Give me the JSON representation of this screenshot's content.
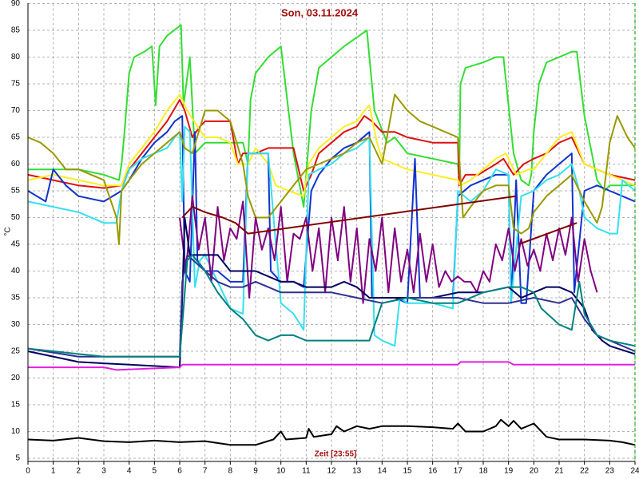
{
  "chart_data": {
    "type": "line",
    "title": "Son, 03.11.2024",
    "xlabel": "Zeit [23:55]",
    "ylabel": "°C",
    "xlim": [
      0,
      24
    ],
    "ylim": [
      5,
      90
    ],
    "xticks": [
      0,
      1,
      2,
      3,
      4,
      5,
      6,
      7,
      8,
      9,
      10,
      11,
      12,
      13,
      14,
      15,
      16,
      17,
      18,
      19,
      20,
      21,
      22,
      23,
      24
    ],
    "yticks": [
      5,
      10,
      15,
      20,
      25,
      30,
      35,
      40,
      45,
      50,
      55,
      60,
      65,
      70,
      75,
      80,
      85,
      90
    ],
    "grid": true,
    "series": [
      {
        "color": "#33dd33",
        "x": [
          0,
          1,
          2,
          3,
          3.6,
          3.7,
          3.8,
          4,
          4.2,
          4.6,
          4.9,
          5.05,
          5.2,
          5.5,
          6.05,
          6.15,
          6.4,
          6.6,
          7,
          8,
          8.5,
          8.7,
          8.8,
          9,
          9.5,
          10,
          10.5,
          10.9,
          11.2,
          11.5,
          12,
          12.5,
          13.1,
          13.4,
          13.7,
          14.2,
          14.5,
          15,
          16,
          17,
          17.05,
          17.1,
          17.3,
          18,
          18.5,
          18.8,
          19.2,
          19.5,
          19.8,
          19.9,
          20,
          20.2,
          20.5,
          21,
          21.5,
          21.7,
          22,
          22.5,
          22.8,
          23,
          24
        ],
        "values": [
          59,
          59,
          59,
          58,
          57,
          60,
          65,
          77,
          80,
          81,
          82,
          71,
          82,
          84,
          86,
          71,
          80,
          62,
          64,
          64,
          64,
          60,
          72,
          77,
          80,
          82,
          62,
          52,
          70,
          78,
          80,
          82,
          84,
          85,
          70,
          64,
          65,
          62,
          61,
          60,
          57,
          75,
          78,
          79,
          80,
          80,
          62,
          57,
          56,
          58,
          66,
          75,
          79,
          80,
          81,
          81,
          69,
          57,
          55,
          56,
          56
        ]
      },
      {
        "color": "#dd1111",
        "x": [
          0,
          1,
          2,
          3,
          3.7,
          4,
          4.5,
          5,
          5.5,
          6,
          6.2,
          6.5,
          6.8,
          7,
          8,
          8.3,
          8.5,
          9,
          9.5,
          10,
          10.5,
          10.9,
          11.2,
          11.5,
          12,
          12.5,
          13,
          13.3,
          13.6,
          14,
          14.5,
          15,
          16,
          17,
          17.05,
          17.3,
          17.8,
          18.5,
          18.8,
          19.2,
          19.6,
          20,
          20.5,
          21,
          21.5,
          21.7,
          22,
          22.5,
          23,
          24
        ],
        "values": [
          58,
          57,
          56,
          55.5,
          56,
          59,
          62,
          65,
          68,
          72,
          70,
          65,
          67,
          68,
          68,
          60,
          62,
          62,
          63,
          63,
          63,
          55,
          58,
          62,
          64,
          66,
          67,
          69,
          68,
          66,
          66,
          65,
          64,
          64,
          56,
          58,
          58,
          60,
          61,
          58,
          60,
          61,
          62,
          64,
          65,
          63,
          60,
          59,
          58,
          57
        ]
      },
      {
        "color": "#ffee22",
        "x": [
          0,
          1,
          2,
          3,
          3.7,
          4,
          4.5,
          5,
          5.5,
          6,
          6.3,
          6.7,
          7,
          7.5,
          8,
          8.3,
          8.7,
          9,
          9.5,
          9.8,
          10.3,
          10.9,
          11.1,
          11.5,
          12,
          12.5,
          13,
          13.3,
          13.5,
          13.8,
          14,
          14.5,
          15,
          16,
          17,
          17.1,
          17.5,
          18,
          18.5,
          18.9,
          19.3,
          19.8,
          20,
          20.5,
          21,
          21.5,
          22,
          22.5,
          23,
          24
        ],
        "values": [
          57,
          58,
          57,
          56,
          56,
          60,
          63,
          66,
          70,
          73,
          70,
          67,
          65,
          65,
          64,
          60,
          60,
          63,
          60,
          56,
          55,
          54,
          60,
          63,
          65,
          67,
          68,
          70,
          71,
          64,
          61,
          60,
          59,
          58,
          57,
          56,
          57,
          59,
          61,
          62,
          58,
          59,
          59,
          62,
          65,
          66,
          60,
          59,
          58,
          56
        ]
      },
      {
        "color": "#1133cc",
        "x": [
          0,
          0.7,
          1,
          1.5,
          2,
          3,
          3.7,
          4,
          4.5,
          5,
          5.5,
          5.8,
          6.1,
          6.2,
          6.4,
          6.6,
          6.7,
          7,
          7.5,
          8,
          8.5,
          8.7,
          9,
          9.5,
          9.6,
          10,
          10.5,
          10.9,
          11.2,
          11.5,
          12,
          12.5,
          13,
          13.5,
          13.6,
          14,
          14.5,
          15,
          15.3,
          15.5,
          16,
          16.8,
          17,
          17.5,
          18,
          18.5,
          19,
          19.1,
          19.3,
          19.5,
          19.7,
          20,
          20.5,
          21,
          21.5,
          21.6,
          22,
          22.5,
          23,
          23.5,
          24
        ],
        "values": [
          55,
          53,
          59,
          56,
          54,
          53,
          55,
          57,
          61,
          64,
          66,
          68,
          69,
          40,
          38,
          66,
          42,
          40,
          40,
          38,
          38,
          62,
          62,
          62,
          40,
          38,
          38,
          37,
          55,
          58,
          61,
          63,
          64,
          66,
          35,
          35,
          35,
          34,
          61,
          35,
          35,
          35,
          54,
          56,
          57,
          58,
          58,
          34,
          57,
          34,
          34,
          55,
          58,
          60,
          62,
          36,
          55,
          56,
          55,
          54,
          53
        ]
      },
      {
        "color": "#33e0f0",
        "x": [
          0,
          1,
          2,
          3,
          3.5,
          3.7,
          4,
          4.5,
          5,
          5.5,
          5.8,
          6,
          6.1,
          6.2,
          6.4,
          6.6,
          6.8,
          7,
          7.5,
          8,
          8.5,
          8.7,
          9,
          9.5,
          9.8,
          10,
          10.5,
          10.9,
          11.1,
          11.5,
          12,
          12.5,
          13,
          13.5,
          13.7,
          14,
          14.5,
          14.7,
          15,
          16,
          16.8,
          17,
          17.5,
          18,
          18.5,
          19,
          19.1,
          19.5,
          20,
          20.5,
          21,
          21.5,
          21.8,
          22,
          22.5,
          23,
          23.3,
          23.5,
          24
        ],
        "values": [
          53,
          52,
          51,
          49,
          49,
          55,
          59,
          61,
          62,
          63,
          65,
          66,
          53,
          67,
          66,
          37,
          42,
          43,
          38,
          33,
          32,
          62,
          62,
          62,
          45,
          34,
          32,
          29,
          58,
          59,
          60,
          62,
          63,
          65,
          28,
          27,
          26,
          35,
          34,
          34,
          33,
          55,
          53,
          55,
          59,
          58,
          34,
          54,
          55,
          57,
          58,
          60,
          55,
          50,
          48,
          47,
          47,
          57,
          55
        ]
      },
      {
        "color": "#999900",
        "x": [
          0,
          0.5,
          1,
          1.5,
          2,
          3,
          3.5,
          3.6,
          3.7,
          4,
          4.5,
          5,
          5.5,
          6,
          6.2,
          6.5,
          7,
          7.5,
          8,
          8.5,
          8.7,
          9,
          9.5,
          10,
          10.5,
          11,
          11.5,
          12,
          12.5,
          13,
          13.5,
          14,
          14.5,
          15,
          15.5,
          16,
          16.5,
          17,
          17.2,
          17.5,
          18,
          18.5,
          19,
          19.2,
          19.5,
          19.8,
          20,
          20.5,
          21,
          21.5,
          22,
          22.5,
          22.7,
          23,
          23.3,
          23.7,
          24
        ],
        "values": [
          65,
          64,
          62,
          59,
          59,
          57,
          50,
          45,
          55,
          57,
          60,
          62,
          64,
          66,
          63,
          62,
          70,
          70,
          68,
          60,
          54,
          50,
          50,
          53,
          56,
          59,
          60,
          61,
          62,
          64,
          65,
          60,
          73,
          70,
          68,
          67,
          66,
          65,
          50,
          52,
          55,
          56,
          56,
          48,
          47,
          48,
          51,
          54,
          56,
          58,
          53,
          49,
          52,
          64,
          69,
          65,
          63
        ]
      },
      {
        "color": "#800080",
        "x": [
          6,
          6.25,
          6.5,
          6.75,
          7,
          7.25,
          7.5,
          7.75,
          8,
          8.25,
          8.5,
          8.75,
          9,
          9.25,
          9.5,
          9.75,
          10,
          10.25,
          10.5,
          10.75,
          11,
          11.25,
          11.5,
          11.75,
          12,
          12.25,
          12.5,
          12.75,
          13,
          13.25,
          13.5,
          13.75,
          14,
          14.25,
          14.5,
          14.75,
          15,
          15.25,
          15.5,
          15.75,
          16,
          16.25,
          16.5,
          16.75,
          17,
          17.25,
          17.5,
          17.75,
          18,
          18.25,
          18.5,
          18.75,
          19,
          19.25,
          19.5,
          19.75,
          20,
          20.25,
          20.5,
          20.75,
          21,
          21.25,
          21.5,
          21.75,
          22,
          22.25,
          22.5
        ],
        "values": [
          50,
          40,
          54,
          44,
          50,
          38,
          52,
          42,
          48,
          46,
          53,
          35,
          50,
          44,
          48,
          42,
          52,
          38,
          47,
          46,
          50,
          40,
          48,
          36,
          50,
          42,
          52,
          38,
          48,
          34,
          46,
          40,
          50,
          36,
          48,
          38,
          44,
          36,
          47,
          38,
          45,
          37,
          40,
          38,
          39,
          38,
          38,
          36,
          40,
          38,
          45,
          42,
          48,
          40,
          46,
          41,
          44,
          40,
          47,
          42,
          48,
          43,
          50,
          38,
          46,
          40,
          36
        ]
      },
      {
        "color": "#800000",
        "x": [
          6.1,
          6.5,
          7,
          7.7,
          8.2,
          8.7,
          19.3
        ],
        "values": [
          50,
          52,
          51,
          50,
          49,
          47,
          54
        ]
      },
      {
        "color": "#800000",
        "x": [
          19.4,
          21.7
        ],
        "values": [
          45,
          49
        ]
      },
      {
        "color": "#000060",
        "x": [
          0,
          2,
          4,
          6,
          6.1,
          6.2,
          6.4,
          7,
          7.5,
          8,
          8.5,
          9,
          9.5,
          10,
          10.5,
          11,
          11.5,
          12,
          12.5,
          13,
          13.5,
          14,
          15,
          16,
          17,
          18,
          19,
          19.5,
          20,
          20.5,
          21,
          21.5,
          22,
          22.3,
          22.7,
          23,
          24
        ],
        "values": [
          25,
          23,
          22.5,
          22,
          35,
          50,
          43,
          43,
          43,
          40,
          40,
          40,
          39,
          38,
          38,
          37,
          37,
          37,
          38,
          37,
          35,
          35,
          35,
          35,
          36,
          36,
          37,
          35,
          36,
          37,
          37,
          36,
          33,
          29,
          27,
          26,
          24.5
        ]
      },
      {
        "color": "#303090",
        "x": [
          0,
          2,
          6,
          6.1,
          6.3,
          7,
          7.5,
          8,
          8.5,
          9,
          9.5,
          10,
          11,
          12,
          13,
          14,
          15,
          16,
          17,
          18,
          19,
          20,
          21,
          21.5,
          22,
          22.5,
          23,
          24
        ],
        "values": [
          25.5,
          24,
          24,
          38,
          43,
          40,
          38,
          37,
          37,
          38,
          37,
          36,
          36,
          36,
          35,
          34,
          35,
          35,
          35,
          34,
          34,
          35,
          34,
          35,
          31,
          28,
          27,
          25
        ]
      },
      {
        "color": "#008080",
        "x": [
          0,
          1,
          2,
          3,
          6,
          6.1,
          6.3,
          6.5,
          7,
          7.5,
          8,
          8.5,
          9,
          9.5,
          10,
          10.5,
          11,
          11.5,
          12,
          12.5,
          13,
          13.5,
          14,
          15,
          16,
          17,
          18,
          19,
          19.5,
          20,
          20.3,
          21,
          21.5,
          21.8,
          22,
          22.5,
          23,
          24
        ],
        "values": [
          25.5,
          25,
          24.5,
          24,
          24,
          30,
          42,
          43,
          40,
          36,
          33,
          31,
          28,
          27,
          28,
          28,
          27,
          27,
          27,
          27,
          27,
          27,
          34,
          35,
          34,
          34,
          36,
          37,
          37,
          36,
          33,
          30,
          29,
          38,
          32,
          28,
          27,
          26
        ]
      },
      {
        "color": "#e020e0",
        "x": [
          0,
          3,
          3.5,
          6,
          6.1,
          9,
          12,
          17,
          17.1,
          19,
          19.2,
          24
        ],
        "values": [
          22,
          22,
          21.5,
          22,
          22.5,
          22.5,
          22.5,
          22.5,
          23,
          23,
          22.5,
          22.5
        ]
      },
      {
        "color": "#000000",
        "x": [
          0,
          1,
          2,
          3,
          4,
          5,
          6,
          7,
          8,
          9,
          9.7,
          10,
          10.2,
          11,
          11.1,
          11.3,
          12,
          12.2,
          12.5,
          13,
          13.5,
          14,
          15,
          16,
          16.8,
          17,
          17.3,
          18,
          18.5,
          18.7,
          19,
          19.2,
          19.5,
          20,
          20.3,
          20.5,
          21,
          22,
          23,
          23.5,
          24
        ],
        "values": [
          8.5,
          8.3,
          8.8,
          8.2,
          8,
          8.3,
          8,
          8.2,
          7.5,
          7.5,
          8.5,
          10,
          8.5,
          8.8,
          10.5,
          9,
          9.5,
          11,
          10,
          11,
          10.5,
          11,
          11,
          10.8,
          10.5,
          11.5,
          10,
          10,
          11,
          12.2,
          11,
          12,
          10.5,
          11.5,
          10,
          9,
          8.5,
          8.5,
          8.3,
          8,
          7.5
        ]
      }
    ]
  }
}
